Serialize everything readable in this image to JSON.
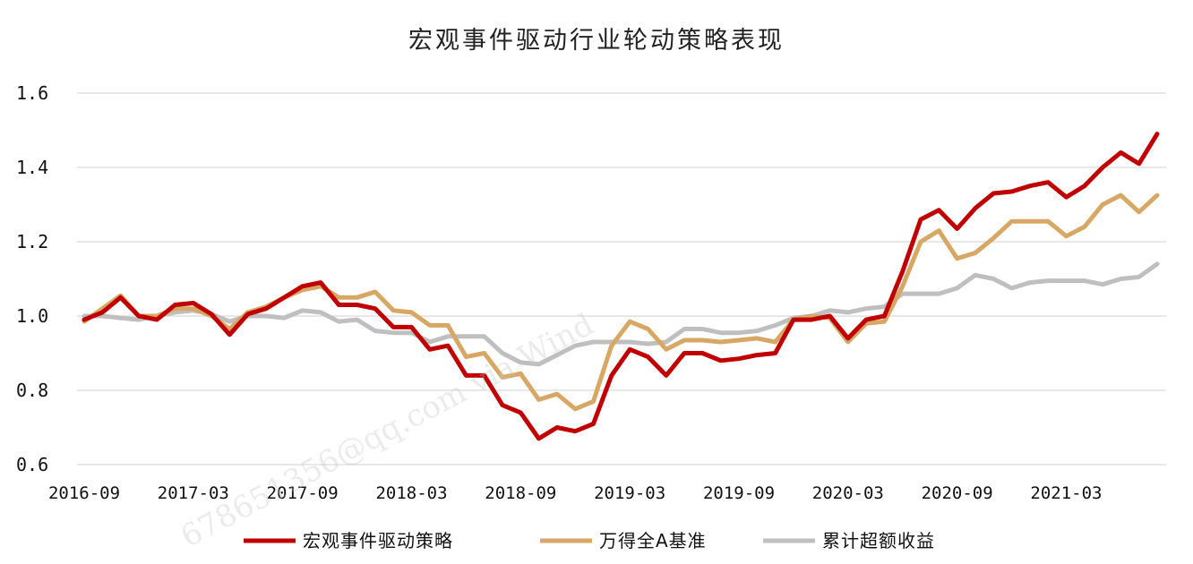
{
  "watermark": "678651356@qq.com via Wind",
  "chart_data": {
    "type": "line",
    "title": "宏观事件驱动行业轮动策略表现",
    "xlabel": "",
    "ylabel": "",
    "ylim": [
      0.6,
      1.6
    ],
    "yticks": [
      "0.6",
      "0.8",
      "1.0",
      "1.2",
      "1.4",
      "1.6"
    ],
    "xtick_labels": [
      "2016-09",
      "2017-03",
      "2017-09",
      "2018-03",
      "2018-09",
      "2019-03",
      "2019-09",
      "2020-03",
      "2020-09",
      "2021-03"
    ],
    "x": [
      "2016-09",
      "2016-10",
      "2016-11",
      "2016-12",
      "2017-01",
      "2017-02",
      "2017-03",
      "2017-04",
      "2017-05",
      "2017-06",
      "2017-07",
      "2017-08",
      "2017-09",
      "2017-10",
      "2017-11",
      "2017-12",
      "2018-01",
      "2018-02",
      "2018-03",
      "2018-04",
      "2018-05",
      "2018-06",
      "2018-07",
      "2018-08",
      "2018-09",
      "2018-10",
      "2018-11",
      "2018-12",
      "2019-01",
      "2019-02",
      "2019-03",
      "2019-04",
      "2019-05",
      "2019-06",
      "2019-07",
      "2019-08",
      "2019-09",
      "2019-10",
      "2019-11",
      "2019-12",
      "2020-01",
      "2020-02",
      "2020-03",
      "2020-04",
      "2020-05",
      "2020-06",
      "2020-07",
      "2020-08",
      "2020-09",
      "2020-10",
      "2020-11",
      "2020-12",
      "2021-01",
      "2021-02",
      "2021-03",
      "2021-04",
      "2021-05",
      "2021-06",
      "2021-07",
      "2021-08"
    ],
    "grid": true,
    "legend_position": "bottom",
    "series": [
      {
        "name": "宏观事件驱动策略",
        "color": "#c00000",
        "values": [
          0.99,
          1.01,
          1.05,
          1.0,
          0.99,
          1.03,
          1.035,
          1.005,
          0.95,
          1.005,
          1.02,
          1.05,
          1.08,
          1.09,
          1.03,
          1.03,
          1.02,
          0.97,
          0.97,
          0.91,
          0.92,
          0.84,
          0.84,
          0.76,
          0.74,
          0.67,
          0.7,
          0.69,
          0.71,
          0.84,
          0.91,
          0.89,
          0.84,
          0.9,
          0.9,
          0.88,
          0.885,
          0.895,
          0.9,
          0.99,
          0.99,
          1.0,
          0.94,
          0.99,
          1.0,
          1.12,
          1.26,
          1.285,
          1.235,
          1.29,
          1.33,
          1.335,
          1.35,
          1.36,
          1.32,
          1.35,
          1.4,
          1.44,
          1.41,
          1.49
        ]
      },
      {
        "name": "万得全A基准",
        "color": "#d7a865",
        "values": [
          0.985,
          1.02,
          1.055,
          1.0,
          1.0,
          1.02,
          1.02,
          1.0,
          0.965,
          1.01,
          1.025,
          1.05,
          1.07,
          1.08,
          1.05,
          1.05,
          1.065,
          1.015,
          1.01,
          0.975,
          0.975,
          0.89,
          0.9,
          0.835,
          0.845,
          0.775,
          0.79,
          0.75,
          0.77,
          0.92,
          0.985,
          0.965,
          0.91,
          0.935,
          0.935,
          0.93,
          0.935,
          0.94,
          0.93,
          0.99,
          1.0,
          0.995,
          0.93,
          0.98,
          0.985,
          1.08,
          1.2,
          1.23,
          1.155,
          1.17,
          1.21,
          1.255,
          1.255,
          1.255,
          1.215,
          1.24,
          1.3,
          1.325,
          1.28,
          1.325
        ]
      },
      {
        "name": "累计超额收益",
        "color": "#bfbfbf",
        "values": [
          1.0,
          1.0,
          0.995,
          0.99,
          1.0,
          1.01,
          1.015,
          1.005,
          0.985,
          1.0,
          1.0,
          0.995,
          1.015,
          1.01,
          0.985,
          0.99,
          0.96,
          0.955,
          0.955,
          0.93,
          0.945,
          0.945,
          0.945,
          0.9,
          0.875,
          0.87,
          0.895,
          0.92,
          0.93,
          0.93,
          0.93,
          0.925,
          0.93,
          0.965,
          0.965,
          0.955,
          0.955,
          0.96,
          0.975,
          0.995,
          1.0,
          1.015,
          1.01,
          1.02,
          1.025,
          1.06,
          1.06,
          1.06,
          1.075,
          1.11,
          1.1,
          1.075,
          1.09,
          1.095,
          1.095,
          1.095,
          1.085,
          1.1,
          1.105,
          1.14
        ]
      }
    ]
  }
}
